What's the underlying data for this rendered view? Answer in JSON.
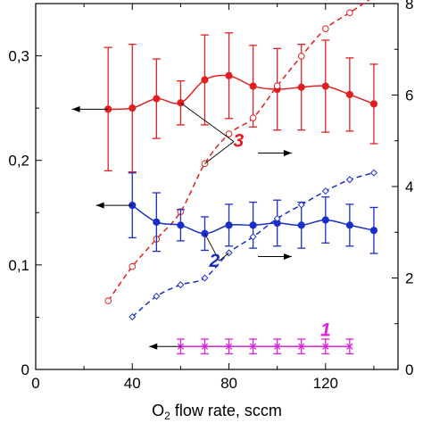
{
  "chart_data": {
    "type": "line",
    "xlabel": "O",
    "xlabel_sub": "2",
    "xlabel_rest": " flow rate, sccm",
    "x_ticks": [
      "0",
      "40",
      "80",
      "120"
    ],
    "y_left_ticks": [
      "0",
      "0,1",
      "0,2",
      "0,3"
    ],
    "y_right_ticks": [
      "0",
      "2",
      "4",
      "6",
      "8"
    ],
    "xlim": [
      0,
      150
    ],
    "ylim_left": [
      0,
      0.35
    ],
    "ylim_right": [
      0,
      8
    ],
    "colors": {
      "red": "#e02020",
      "blue": "#1a2fc8",
      "magenta": "#e020e0",
      "black": "#000000"
    },
    "series": [
      {
        "label": "3",
        "axis": "left",
        "style": "solid",
        "marker": "filled-circle",
        "color": "red",
        "x": [
          30,
          40,
          50,
          60,
          70,
          80,
          90,
          100,
          110,
          120,
          130,
          140
        ],
        "y": [
          0.249,
          0.25,
          0.259,
          0.255,
          0.277,
          0.281,
          0.271,
          0.268,
          0.27,
          0.271,
          0.263,
          0.254
        ],
        "err": [
          0.059,
          0.061,
          0.038,
          0.021,
          0.043,
          0.041,
          0.039,
          0.039,
          0.041,
          0.044,
          0.035,
          0.038
        ]
      },
      {
        "label": "3",
        "axis": "right",
        "style": "dashed",
        "marker": "open-circle",
        "color": "red",
        "x": [
          30,
          40,
          50,
          60,
          70,
          80,
          90,
          100,
          110,
          120,
          130,
          140
        ],
        "y": [
          1.5,
          2.25,
          2.85,
          3.45,
          4.5,
          5.15,
          5.5,
          6.2,
          6.85,
          7.45,
          7.8,
          8.15
        ]
      },
      {
        "label": "2",
        "axis": "left",
        "style": "solid",
        "marker": "filled-circle",
        "color": "blue",
        "x": [
          40,
          50,
          60,
          70,
          80,
          90,
          100,
          110,
          120,
          130,
          140
        ],
        "y": [
          0.157,
          0.141,
          0.138,
          0.13,
          0.138,
          0.138,
          0.14,
          0.138,
          0.143,
          0.138,
          0.133
        ],
        "err": [
          0.031,
          0.028,
          0.015,
          0.016,
          0.02,
          0.022,
          0.022,
          0.022,
          0.022,
          0.02,
          0.022
        ]
      },
      {
        "label": "2",
        "axis": "right",
        "style": "dashed",
        "marker": "open-diamond",
        "color": "blue",
        "x": [
          40,
          50,
          60,
          70,
          80,
          90,
          100,
          110,
          120,
          130,
          140
        ],
        "y": [
          1.15,
          1.6,
          1.85,
          2.0,
          2.55,
          2.9,
          3.3,
          3.6,
          3.9,
          4.15,
          4.3
        ]
      },
      {
        "label": "1",
        "axis": "left",
        "style": "solid",
        "marker": "cross",
        "color": "magenta",
        "x": [
          60,
          70,
          80,
          90,
          100,
          110,
          120,
          130
        ],
        "y": [
          0.022,
          0.022,
          0.022,
          0.022,
          0.022,
          0.022,
          0.022,
          0.022
        ],
        "err": [
          0.007,
          0.007,
          0.007,
          0.007,
          0.007,
          0.007,
          0.007,
          0.007
        ]
      }
    ],
    "annotations": [
      {
        "text": "3",
        "color": "red",
        "x": 84,
        "y_left": 0.213
      },
      {
        "text": "2",
        "color": "blue",
        "x": 74,
        "y_left": 0.098
      },
      {
        "text": "1",
        "color": "magenta",
        "x": 120,
        "y_left": 0.032
      }
    ],
    "axis_arrows": [
      {
        "direction": "left",
        "color": "black",
        "x_from": 30,
        "x_to": 15,
        "y_left": 0.249
      },
      {
        "direction": "left",
        "color": "black",
        "x_from": 40,
        "x_to": 25,
        "y_left": 0.157
      },
      {
        "direction": "left",
        "color": "black",
        "x_from": 60,
        "x_to": 47,
        "y_left": 0.022
      },
      {
        "direction": "right",
        "color": "black",
        "x_from": 92,
        "x_to": 106,
        "y_left": 0.207
      },
      {
        "direction": "right",
        "color": "black",
        "x_from": 92,
        "x_to": 106,
        "y_left": 0.108
      }
    ],
    "leader_lines": [
      {
        "color": "black",
        "from_x": 82,
        "from_y_left": 0.218,
        "to": [
          {
            "x": 60,
            "y_left": 0.255
          },
          {
            "x": 70,
            "y_right": 4.5
          }
        ]
      },
      {
        "color": "black",
        "from_x": 76,
        "from_y_left": 0.104,
        "to": [
          {
            "x": 70,
            "y_left": 0.13
          },
          {
            "x": 80,
            "y_right": 2.55
          }
        ]
      }
    ]
  }
}
